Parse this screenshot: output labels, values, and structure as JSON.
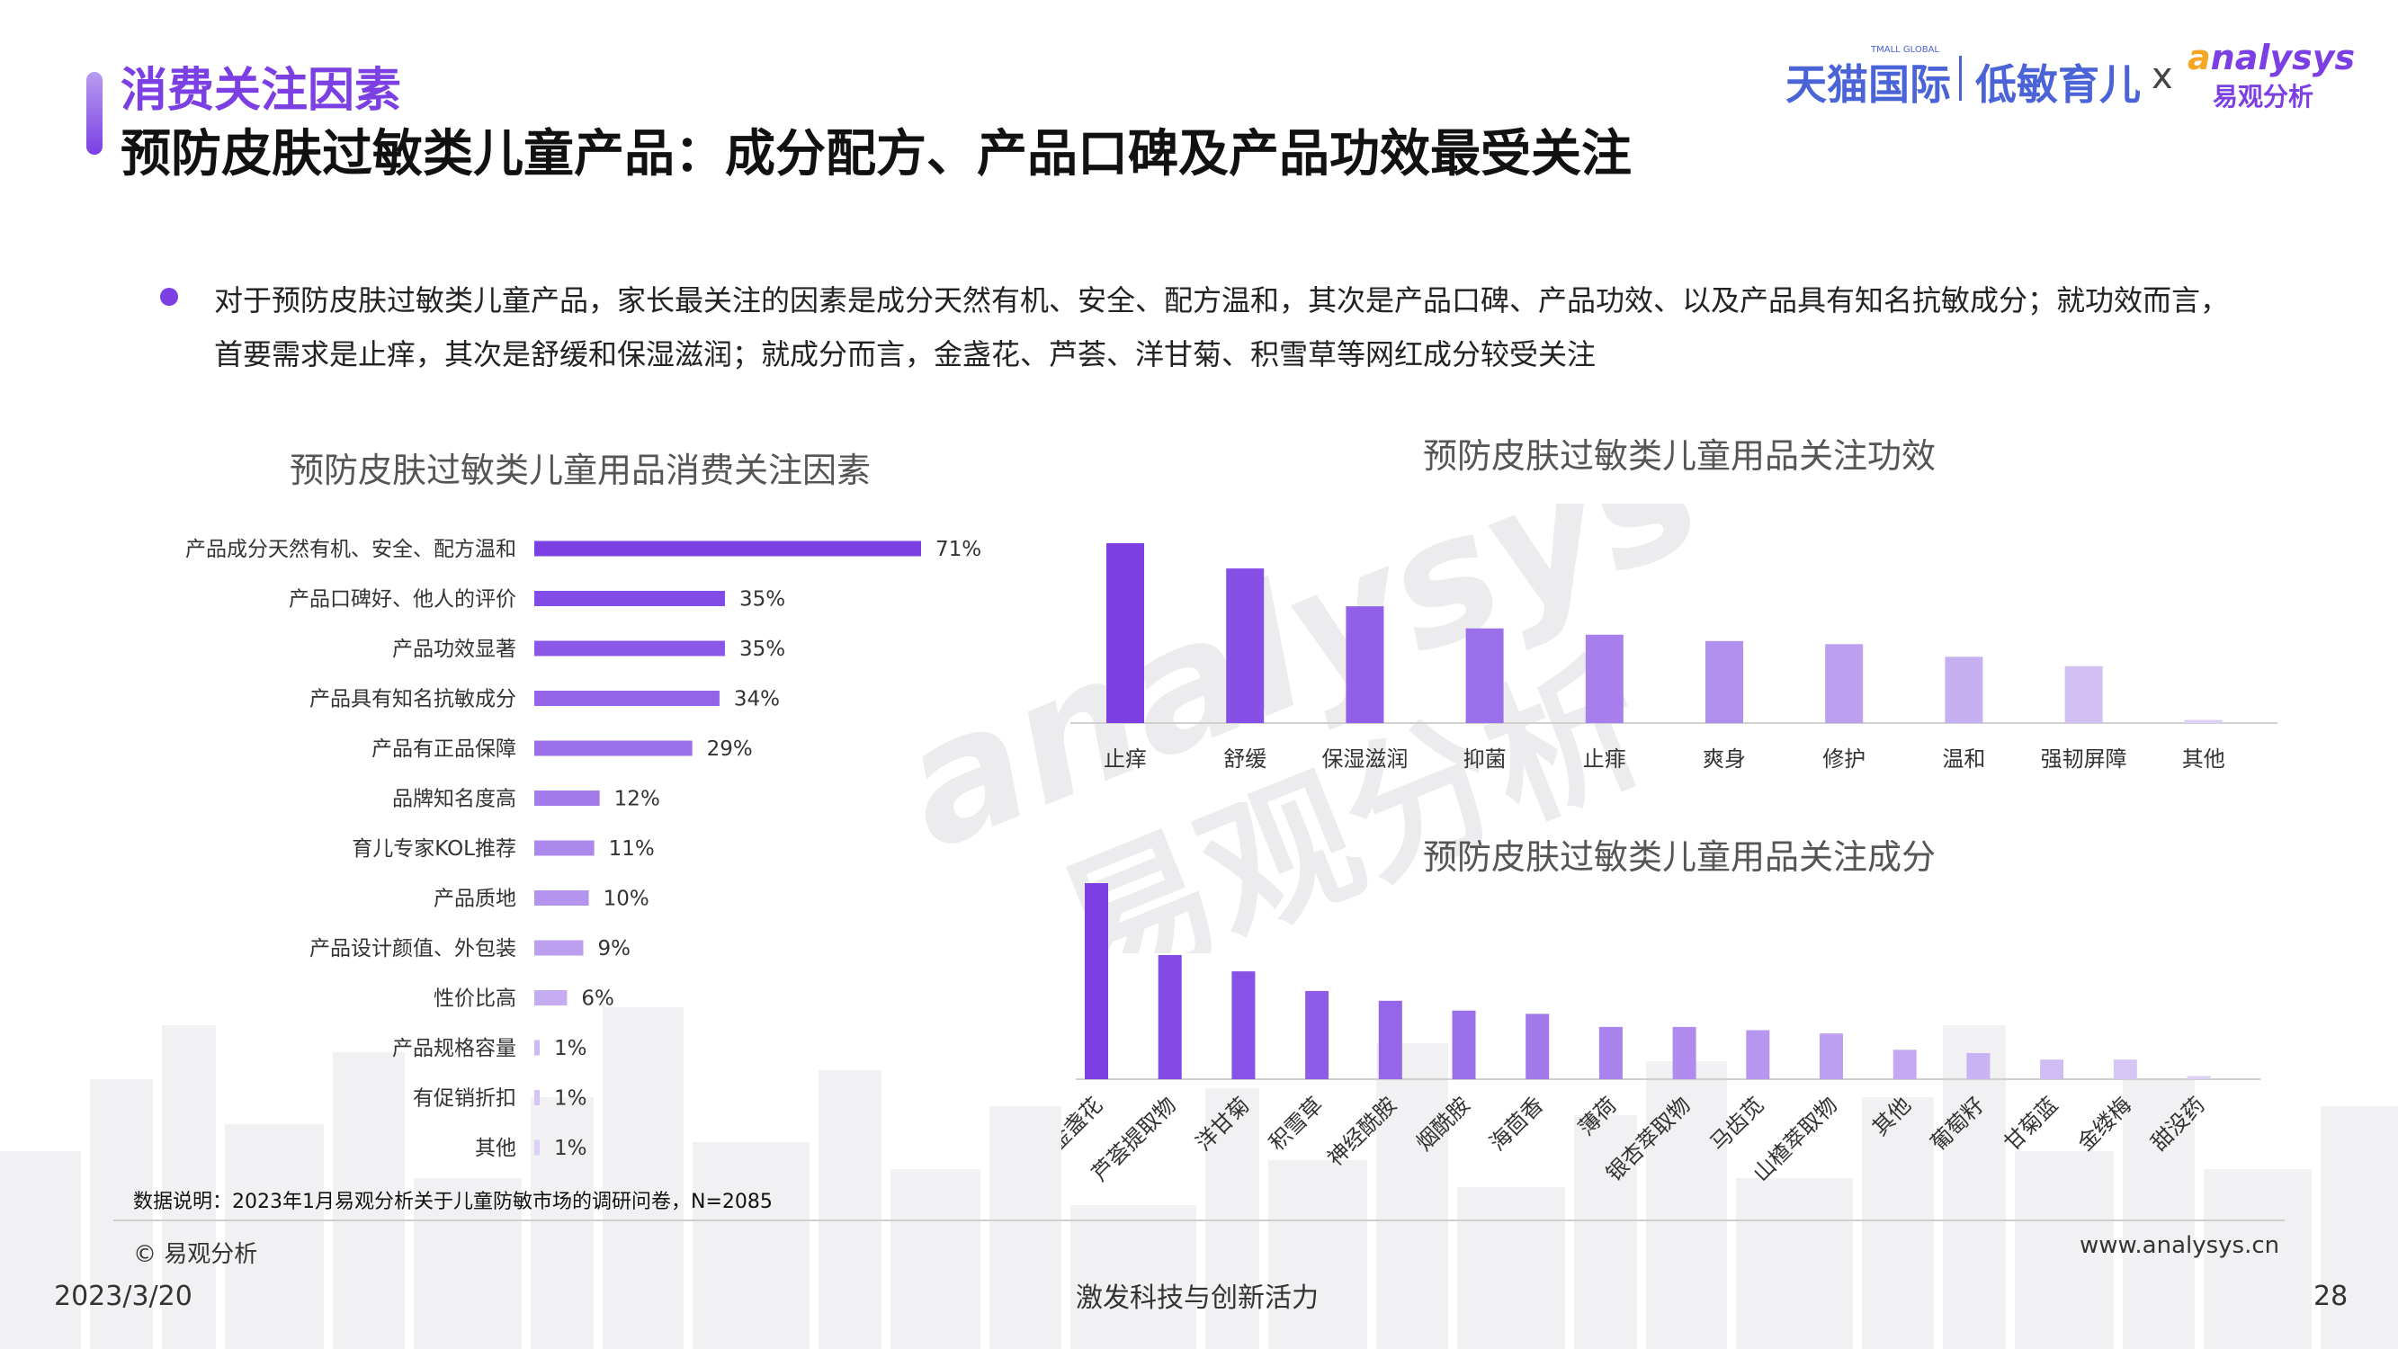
{
  "header": {
    "section_label": "消费关注因素",
    "title": "预防皮肤过敏类儿童产品：成分配方、产品口碑及产品功效最受关注",
    "brand_tmall": "天猫国际",
    "brand_tmall_sub": "TMALL GLOBAL",
    "brand_lowsens": "低敏育儿",
    "brand_x": "x",
    "brand_analysys_o": "a",
    "brand_analysys": "nalysys",
    "brand_analysys_cn": "易观分析"
  },
  "summary": "对于预防皮肤过敏类儿童产品，家长最关注的因素是成分天然有机、安全、配方温和，其次是产品口碑、产品功效、以及产品具有知名抗敏成分；就功效而言，首要需求是止痒，其次是舒缓和保湿滋润；就成分而言，金盏花、芦荟、洋甘菊、积雪草等网红成分较受关注",
  "watermark": {
    "line1": "analysys",
    "line2": "易观分析"
  },
  "colors": {
    "accent": "#7b3fe4",
    "brand_blue": "#4a63d6",
    "bar_dark": "#7b3fe4",
    "bar_light": "#ddd0f5"
  },
  "chart_data": [
    {
      "type": "bar",
      "orientation": "horizontal",
      "title": "预防皮肤过敏类儿童用品消费关注因素",
      "categories": [
        "产品成分天然有机、安全、配方温和",
        "产品口碑好、他人的评价",
        "产品功效显著",
        "产品具有知名抗敏成分",
        "产品有正品保障",
        "品牌知名度高",
        "育儿专家KOL推荐",
        "产品质地",
        "产品设计颜值、外包装",
        "性价比高",
        "产品规格容量",
        "有促销折扣",
        "其他"
      ],
      "values": [
        71,
        35,
        35,
        34,
        29,
        12,
        11,
        10,
        9,
        6,
        1,
        1,
        1
      ],
      "labels": [
        "71%",
        "35%",
        "35%",
        "34%",
        "29%",
        "12%",
        "11%",
        "10%",
        "9%",
        "6%",
        "1%",
        "1%",
        "1%"
      ],
      "unit": "%"
    },
    {
      "type": "bar",
      "title": "预防皮肤过敏类儿童用品关注功效",
      "categories": [
        "止痒",
        "舒缓",
        "保湿滋润",
        "抑菌",
        "止痱",
        "爽身",
        "修护",
        "温和",
        "强韧屏障",
        "其他"
      ],
      "values": [
        57,
        49,
        37,
        30,
        28,
        26,
        25,
        21,
        18,
        1
      ]
    },
    {
      "type": "bar",
      "title": "预防皮肤过敏类儿童用品关注成分",
      "categories": [
        "金盏花",
        "芦荟提取物",
        "洋甘菊",
        "积雪草",
        "神经酰胺",
        "烟酰胺",
        "海茴香",
        "薄荷",
        "银杏萃取物",
        "马齿苋",
        "山楂萃取物",
        "其他",
        "葡萄籽",
        "甘菊蓝",
        "金缕梅",
        "甜没药"
      ],
      "values": [
        60,
        38,
        33,
        27,
        24,
        21,
        20,
        16,
        16,
        15,
        14,
        9,
        8,
        6,
        6,
        1
      ]
    }
  ],
  "footer": {
    "note": "数据说明：2023年1月易观分析关于儿童防敏市场的调研问卷，N=2085",
    "copyright": "© 易观分析",
    "website": "www.analysys.cn",
    "date": "2023/3/20",
    "slogan": "激发科技与创新活力",
    "page": "28"
  }
}
